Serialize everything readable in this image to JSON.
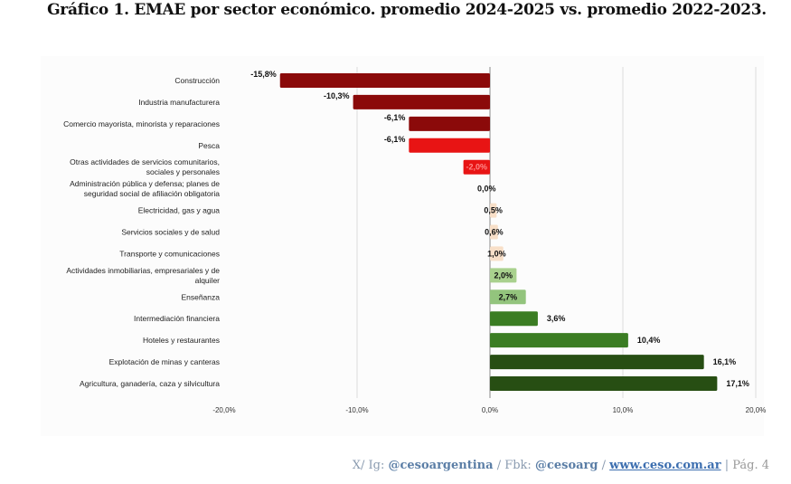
{
  "title": "Gráfico 1. EMAE por sector económico. promedio 2024-2025 vs. promedio 2022-2023.",
  "chart_data": {
    "type": "bar",
    "orientation": "horizontal",
    "title": "",
    "xlabel": "",
    "ylabel": "",
    "xlim": [
      -20,
      20
    ],
    "x_ticks": [
      "-20,0%",
      "-10,0%",
      "0,0%",
      "10,0%",
      "20,0%"
    ],
    "grid": true,
    "categories": [
      [
        "Construcción"
      ],
      [
        "Industria manufacturera"
      ],
      [
        "Comercio mayorista, minorista y reparaciones"
      ],
      [
        "Pesca"
      ],
      [
        "Otras actividades de servicios comunitarios,",
        "sociales y personales"
      ],
      [
        "Administración pública y defensa; planes de",
        "seguridad social de afiliación obligatoria"
      ],
      [
        "Electricidad, gas y agua"
      ],
      [
        "Servicios sociales y de salud"
      ],
      [
        "Transporte y comunicaciones"
      ],
      [
        "Actividades inmobiliarias, empresariales y de",
        "alquiler"
      ],
      [
        "Enseñanza"
      ],
      [
        "Intermediación financiera"
      ],
      [
        "Hoteles y restaurantes"
      ],
      [
        "Explotación de minas y canteras"
      ],
      [
        "Agricultura, ganadería, caza y silvicultura"
      ]
    ],
    "values": [
      -15.8,
      -10.3,
      -6.1,
      -6.1,
      -2.0,
      0.0,
      0.5,
      0.6,
      1.0,
      2.0,
      2.7,
      3.6,
      10.4,
      16.1,
      17.1
    ],
    "data_labels": [
      "-15,8%",
      "-10,3%",
      "-6,1%",
      "-6,1%",
      "-2,0%",
      "0,0%",
      "0,5%",
      "0,6%",
      "1,0%",
      "2,0%",
      "2,7%",
      "3,6%",
      "10,4%",
      "16,1%",
      "17,1%"
    ],
    "colors": [
      "#8b0a0a",
      "#8b0a0a",
      "#8b0a0a",
      "#e81414",
      "#e81414",
      "#8b0a0a",
      "#f8dfc8",
      "#f8dfc8",
      "#f8dfc8",
      "#a9d18e",
      "#93c47d",
      "#3b7d23",
      "#3b7d23",
      "#274e13",
      "#274e13"
    ]
  },
  "footer": {
    "prefix": "X/ Ig: ",
    "handle1": "@cesoargentina",
    "sep1": " / Fbk: ",
    "handle2": "@cesoarg",
    "sep2": " / ",
    "website": "www.ceso.com.ar",
    "sep3": " |  ",
    "page": "Pág. 4"
  }
}
